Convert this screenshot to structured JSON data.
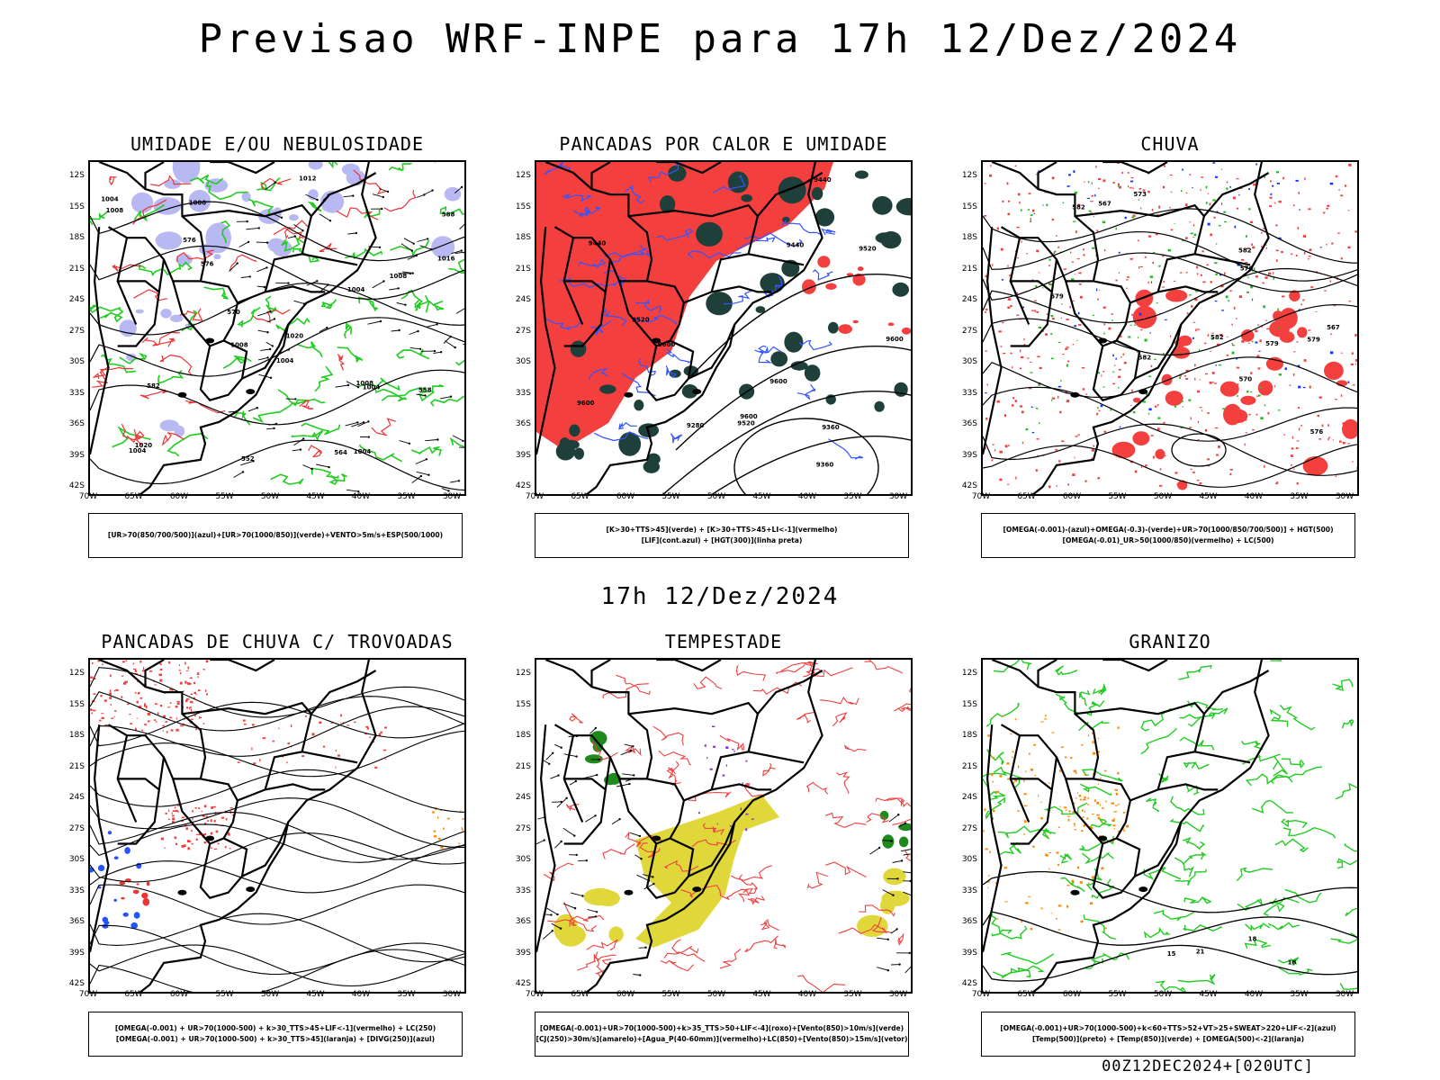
{
  "title": "Previsao WRF-INPE  para 17h 12/Dez/2024",
  "subtitle": "17h 12/Dez/2024",
  "footer": "00Z12DEC2024+[020UTC]",
  "lat_ticks": [
    "12S",
    "15S",
    "18S",
    "21S",
    "24S",
    "27S",
    "30S",
    "33S",
    "36S",
    "39S",
    "42S"
  ],
  "lon_ticks": [
    "70W",
    "65W",
    "60W",
    "55W",
    "50W",
    "45W",
    "40W",
    "35W",
    "30W"
  ],
  "panels": [
    {
      "title": "UMIDADE E/OU NEBULOSIDADE",
      "legend": [
        "[UR>70(850/700/500)](azul)+[UR>70(1000/850)](verde)+VENTO>5m/s+ESP(500/1000)"
      ],
      "contour_labels": [
        "1004",
        "1004",
        "1008",
        "1004",
        "1008",
        "1012",
        "1016",
        "1020",
        "1020",
        "1008",
        "1004",
        "1000",
        "1008",
        "1004",
        "1004",
        "576",
        "576",
        "570",
        "564",
        "558",
        "552",
        "588",
        "582"
      ]
    },
    {
      "title": "PANCADAS POR CALOR E UMIDADE",
      "legend": [
        "[K>30+TTS>45](verde) + [K>30+TTS>45+LI<-1](vermelho)",
        "[LIF](cont.azul) + [HGT(300)](linha preta)"
      ],
      "contour_labels": [
        "9600",
        "9600",
        "9600",
        "9600",
        "9520",
        "9440",
        "9360",
        "9280",
        "9520",
        "9440",
        "9360",
        "9600",
        "9520",
        "9440"
      ]
    },
    {
      "title": "CHUVA",
      "legend": [
        "[OMEGA(-0.001)-(azul)+OMEGA(-0.3)-(verde)+UR>70(1000/850/700/500)] + HGT(500)",
        "[OMEGA(-0.01)_UR>50(1000/850)(vermelho) + LC(500)"
      ],
      "contour_labels": [
        "582",
        "582",
        "582",
        "579",
        "579",
        "576",
        "573",
        "570",
        "567",
        "576",
        "579",
        "567",
        "582"
      ]
    },
    {
      "title": "PANCADAS DE CHUVA C/ TROVOADAS",
      "legend": [
        "[OMEGA(-0.001) + UR>70(1000-500) + k>30_TTS>45+LIF<-1](vermelho) + LC(250)",
        "[OMEGA(-0.001) + UR>70(1000-500) + k>30_TTS>45](laranja) + [DIVG(250)](azul)"
      ],
      "contour_labels": []
    },
    {
      "title": "TEMPESTADE",
      "legend": [
        "[OMEGA(-0.001)+UR>70(1000-500)+k>35_TTS>50+LIF<-4](roxo)+[Vento(850)>10m/s](verde)",
        "[CJ(250)>30m/s](amarelo)+[Agua_P(40-60mm)](vermelho)+LC(850)+[Vento(850)>15m/s](vetor)"
      ],
      "contour_labels": []
    },
    {
      "title": "GRANIZO",
      "legend": [
        "[OMEGA(-0.001)+UR>70(1000-500)+k<60+TTS>52+VT>25+SWEAT>220+LIF<-2](azul)",
        "[Temp(500)](preto) + [Temp(850)](verde) + [OMEGA(500)<-2](laranja)"
      ],
      "contour_labels": [
        "15",
        "18",
        "21",
        "18"
      ]
    }
  ]
}
